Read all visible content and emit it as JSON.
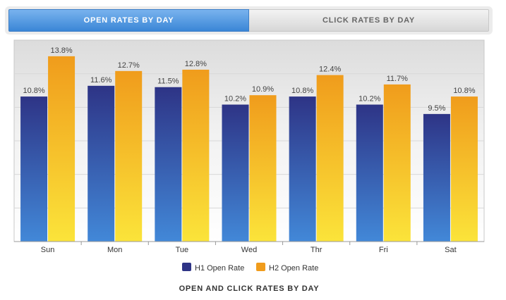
{
  "tabs": [
    {
      "label": "OPEN RATES BY DAY",
      "active": true
    },
    {
      "label": "CLICK RATES BY DAY",
      "active": false
    }
  ],
  "colors": {
    "h1_top": "#2e3486",
    "h1_bottom": "#4288d8",
    "h2_top": "#f09c1c",
    "h2_bottom": "#fbe43a"
  },
  "chart_data": {
    "type": "bar",
    "title": "OPEN AND CLICK RATES BY DAY",
    "categories": [
      "Sun",
      "Mon",
      "Tue",
      "Wed",
      "Thr",
      "Fri",
      "Sat"
    ],
    "series": [
      {
        "name": "H1 Open Rate",
        "values": [
          10.8,
          11.6,
          11.5,
          10.2,
          10.8,
          10.2,
          9.5
        ]
      },
      {
        "name": "H2 Open Rate",
        "values": [
          13.8,
          12.7,
          12.8,
          10.9,
          12.4,
          11.7,
          10.8
        ]
      }
    ],
    "data_labels": [
      [
        "10.8%",
        "11.6%",
        "11.5%",
        "10.2%",
        "10.8%",
        "10.2%",
        "9.5%"
      ],
      [
        "13.8%",
        "12.7%",
        "12.8%",
        "10.9%",
        "12.4%",
        "11.7%",
        "10.8%"
      ]
    ],
    "ylim": [
      0,
      15
    ],
    "grid": true,
    "legend": "bottom-center"
  }
}
